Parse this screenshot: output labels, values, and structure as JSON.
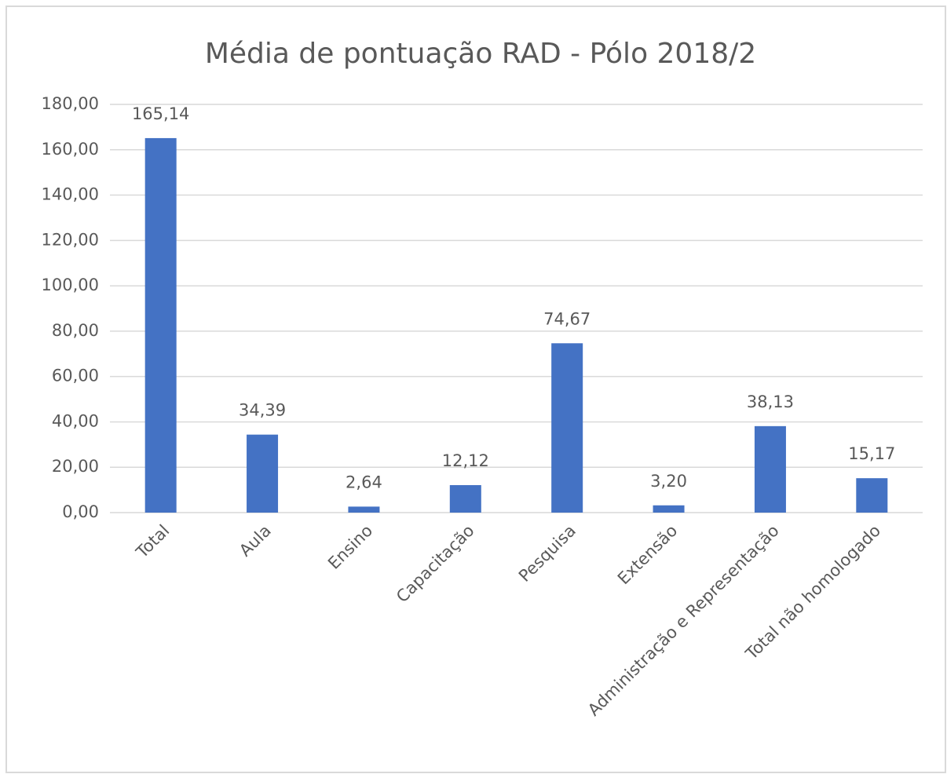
{
  "chart_data": {
    "type": "bar",
    "title": "Média de pontuação RAD - Pólo 2018/2",
    "categories": [
      "Total",
      "Aula",
      "Ensino",
      "Capacitação",
      "Pesquisa",
      "Extensão",
      "Administração e Representação",
      "Total não homologado"
    ],
    "values": [
      165.14,
      34.39,
      2.64,
      12.12,
      74.67,
      3.2,
      38.13,
      15.17
    ],
    "value_labels": [
      "165,14",
      "34,39",
      "2,64",
      "12,12",
      "74,67",
      "3,20",
      "38,13",
      "15,17"
    ],
    "color": "#4472c4",
    "ylim": [
      0,
      180
    ],
    "yticks": [
      {
        "value": 0,
        "label": "0,00"
      },
      {
        "value": 20,
        "label": "20,00"
      },
      {
        "value": 40,
        "label": "40,00"
      },
      {
        "value": 60,
        "label": "60,00"
      },
      {
        "value": 80,
        "label": "80,00"
      },
      {
        "value": 100,
        "label": "100,00"
      },
      {
        "value": 120,
        "label": "120,00"
      },
      {
        "value": 140,
        "label": "140,00"
      },
      {
        "value": 160,
        "label": "160,00"
      },
      {
        "value": 180,
        "label": "180,00"
      }
    ],
    "grid": true
  }
}
